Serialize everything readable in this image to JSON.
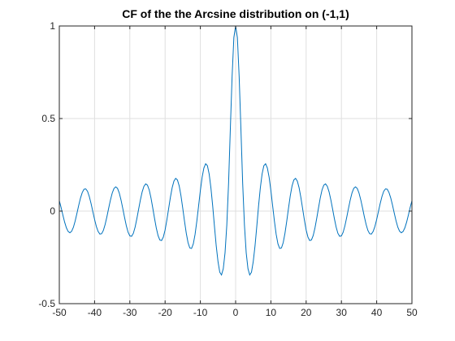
{
  "chart_data": {
    "type": "line",
    "title": "CF of the the Arcsine distribution on (-1,1)",
    "xlabel": "",
    "ylabel": "",
    "xlim": [
      -50,
      50
    ],
    "ylim": [
      -0.5,
      1
    ],
    "xticks": [
      -50,
      -40,
      -30,
      -20,
      -10,
      0,
      10,
      20,
      30,
      40,
      50
    ],
    "xtick_labels": [
      "-50",
      "-40",
      "-30",
      "-20",
      "-10",
      "0",
      "10",
      "20",
      "30",
      "40",
      "50"
    ],
    "yticks": [
      -0.5,
      0,
      0.5,
      1
    ],
    "ytick_labels": [
      "-0.5",
      "0",
      "0.5",
      "1"
    ],
    "grid": true,
    "legend": "none",
    "series": [
      {
        "color": "#0072bd",
        "x": [
          -50,
          -49.5,
          -49,
          -48.5,
          -48,
          -47.5,
          -47,
          -46.5,
          -46,
          -45.5,
          -45,
          -44.5,
          -44,
          -43.5,
          -43,
          -42.5,
          -42,
          -41.5,
          -41,
          -40.5,
          -40,
          -39.5,
          -39,
          -38.5,
          -38,
          -37.5,
          -37,
          -36.5,
          -36,
          -35.5,
          -35,
          -34.5,
          -34,
          -33.5,
          -33,
          -32.5,
          -32,
          -31.5,
          -31,
          -30.5,
          -30,
          -29.5,
          -29,
          -28.5,
          -28,
          -27.5,
          -27,
          -26.5,
          -26,
          -25.5,
          -25,
          -24.5,
          -24,
          -23.5,
          -23,
          -22.5,
          -22,
          -21.5,
          -21,
          -20.5,
          -20,
          -19.5,
          -19,
          -18.5,
          -18,
          -17.5,
          -17,
          -16.5,
          -16,
          -15.5,
          -15,
          -14.5,
          -14,
          -13.5,
          -13,
          -12.5,
          -12,
          -11.5,
          -11,
          -10.5,
          -10,
          -9.5,
          -9,
          -8.5,
          -8,
          -7.5,
          -7,
          -6.5,
          -6,
          -5.5,
          -5,
          -4.5,
          -4,
          -3.5,
          -3,
          -2.5,
          -2,
          -1.5,
          -1,
          -0.5,
          0,
          0.5,
          1,
          1.5,
          2,
          2.5,
          3,
          3.5,
          4,
          4.5,
          5,
          5.5,
          6,
          6.5,
          7,
          7.5,
          8,
          8.5,
          9,
          9.5,
          10,
          10.5,
          11,
          11.5,
          12,
          12.5,
          13,
          13.5,
          14,
          14.5,
          15,
          15.5,
          16,
          16.5,
          17,
          17.5,
          18,
          18.5,
          19,
          19.5,
          20,
          20.5,
          21,
          21.5,
          22,
          22.5,
          23,
          23.5,
          24,
          24.5,
          25,
          25.5,
          26,
          26.5,
          27,
          27.5,
          28,
          28.5,
          29,
          29.5,
          30,
          30.5,
          31,
          31.5,
          32,
          32.5,
          33,
          33.5,
          34,
          34.5,
          35,
          35.5,
          36,
          36.5,
          37,
          37.5,
          38,
          38.5,
          39,
          39.5,
          40,
          40.5,
          41,
          41.5,
          42,
          42.5,
          43,
          43.5,
          44,
          44.5,
          45,
          45.5,
          46,
          46.5,
          47,
          47.5,
          48,
          48.5,
          49,
          49.5,
          50
        ],
        "y": [
          0.056,
          0.02,
          -0.021,
          -0.059,
          -0.09,
          -0.11,
          -0.117,
          -0.109,
          -0.087,
          -0.053,
          -0.012,
          0.031,
          0.07,
          0.1,
          0.118,
          0.12,
          0.107,
          0.079,
          0.041,
          -0.002,
          -0.045,
          -0.083,
          -0.11,
          -0.124,
          -0.122,
          -0.104,
          -0.072,
          -0.03,
          0.016,
          0.06,
          0.097,
          0.122,
          0.131,
          0.123,
          0.098,
          0.06,
          0.014,
          -0.034,
          -0.079,
          -0.114,
          -0.134,
          -0.136,
          -0.12,
          -0.086,
          -0.04,
          0.011,
          0.061,
          0.104,
          0.134,
          0.147,
          0.14,
          0.114,
          0.071,
          0.017,
          -0.039,
          -0.091,
          -0.132,
          -0.156,
          -0.159,
          -0.14,
          -0.102,
          -0.048,
          0.013,
          0.074,
          0.126,
          0.162,
          0.177,
          0.168,
          0.136,
          0.083,
          0.016,
          -0.054,
          -0.119,
          -0.17,
          -0.199,
          -0.202,
          -0.177,
          -0.126,
          -0.054,
          0.028,
          0.111,
          0.183,
          0.233,
          0.256,
          0.245,
          0.2,
          0.124,
          0.027,
          -0.083,
          -0.188,
          -0.272,
          -0.33,
          -0.345,
          -0.311,
          -0.225,
          -0.075,
          0.15,
          0.444,
          0.727,
          0.938,
          1.0,
          0.938,
          0.727,
          0.444,
          0.15,
          -0.075,
          -0.225,
          -0.311,
          -0.345,
          -0.33,
          -0.272,
          -0.188,
          -0.083,
          0.027,
          0.124,
          0.2,
          0.245,
          0.256,
          0.233,
          0.183,
          0.111,
          0.028,
          -0.054,
          -0.126,
          -0.177,
          -0.202,
          -0.199,
          -0.17,
          -0.119,
          -0.054,
          0.016,
          0.083,
          0.136,
          0.168,
          0.177,
          0.162,
          0.126,
          0.074,
          0.013,
          -0.048,
          -0.102,
          -0.14,
          -0.159,
          -0.156,
          -0.132,
          -0.091,
          -0.039,
          0.017,
          0.071,
          0.114,
          0.14,
          0.147,
          0.134,
          0.104,
          0.061,
          0.011,
          -0.04,
          -0.086,
          -0.12,
          -0.136,
          -0.134,
          -0.114,
          -0.079,
          -0.034,
          0.014,
          0.06,
          0.098,
          0.123,
          0.131,
          0.122,
          0.097,
          0.06,
          0.016,
          -0.03,
          -0.072,
          -0.104,
          -0.122,
          -0.124,
          -0.11,
          -0.083,
          -0.045,
          -0.002,
          0.041,
          0.079,
          0.107,
          0.12,
          0.118,
          0.1,
          0.07,
          0.031,
          -0.012,
          -0.053,
          -0.087,
          -0.109,
          -0.117,
          -0.11,
          -0.09,
          -0.059,
          -0.021,
          0.02,
          0.056
        ]
      }
    ]
  }
}
